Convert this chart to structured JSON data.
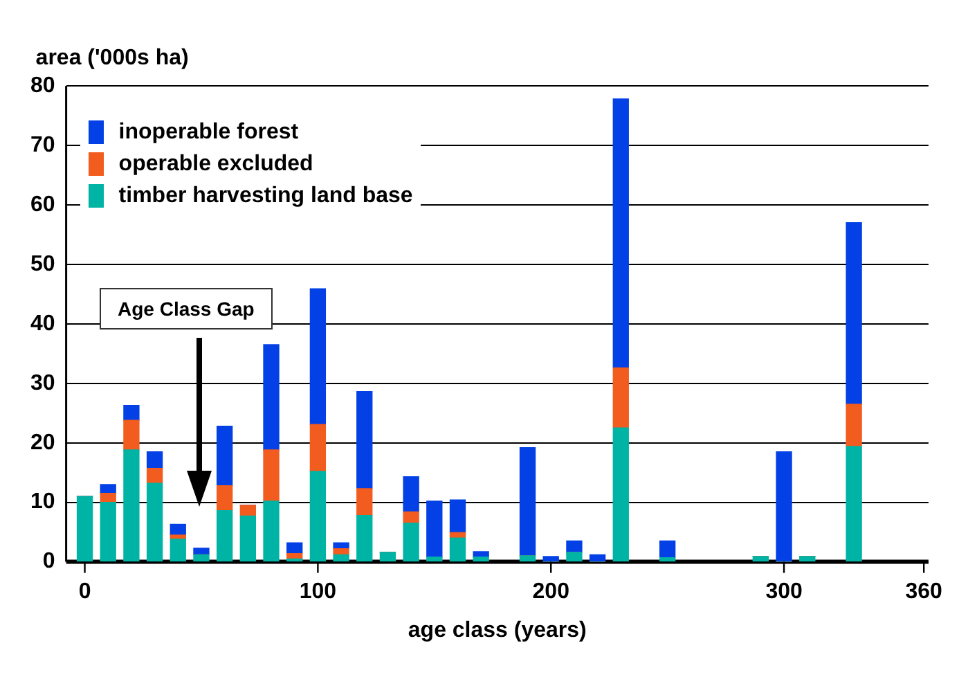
{
  "chart_data": {
    "type": "bar",
    "stacked": true,
    "ylabel": "area ('000s ha)",
    "xlabel": "age class (years)",
    "x": [
      0,
      10,
      20,
      30,
      40,
      50,
      60,
      70,
      80,
      90,
      100,
      110,
      120,
      130,
      140,
      150,
      160,
      170,
      190,
      200,
      210,
      220,
      230,
      250,
      290,
      300,
      310,
      330
    ],
    "series": [
      {
        "name": "timber harvesting land base",
        "color": "#00b4a5",
        "values": [
          11,
          10,
          18.8,
          13.2,
          3.8,
          1.2,
          8.6,
          7.7,
          10.2,
          0.5,
          15.2,
          1.2,
          7.8,
          1.6,
          6.5,
          0.8,
          4,
          0.8,
          1,
          0,
          1.6,
          0,
          22.5,
          0.7,
          0.9,
          0,
          0.9,
          19.4
        ]
      },
      {
        "name": "operable excluded",
        "color": "#f25c1e",
        "values": [
          0,
          1.5,
          5,
          2.5,
          0.7,
          0,
          4.2,
          1.8,
          8.6,
          0.9,
          7.9,
          1,
          4.5,
          0,
          1.9,
          0,
          0.9,
          0,
          0,
          0,
          0,
          0,
          10.1,
          0,
          0,
          0,
          0,
          7.1
        ]
      },
      {
        "name": "inoperable forest",
        "color": "#0340e6",
        "values": [
          0,
          1.5,
          2.5,
          2.8,
          1.8,
          1.1,
          10,
          0,
          17.7,
          1.8,
          22.8,
          1,
          16.3,
          0,
          5.9,
          9.4,
          5.5,
          0.9,
          18.2,
          0.9,
          1.9,
          1.2,
          45.2,
          2.8,
          0,
          18.5,
          0,
          30.5
        ]
      }
    ],
    "xlim": [
      -8,
      362
    ],
    "xticks": [
      0,
      100,
      200,
      300,
      360
    ],
    "ylim": [
      0,
      80
    ],
    "yticks": [
      0,
      10,
      20,
      30,
      40,
      50,
      60,
      70,
      80
    ],
    "grid": "y",
    "legend": "top left",
    "annotations": [
      "Age Class Gap"
    ]
  }
}
